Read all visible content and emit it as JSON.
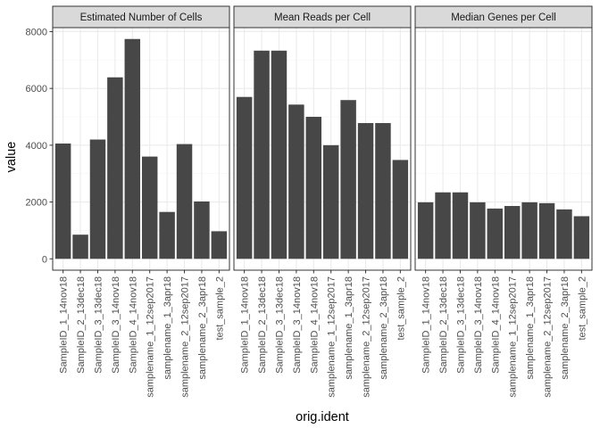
{
  "chart_data": {
    "type": "bar",
    "facets": true,
    "xlabel": "orig.ident",
    "ylabel": "value",
    "ylim": [
      -400,
      8140
    ],
    "yticks": [
      0,
      2000,
      4000,
      6000,
      8000
    ],
    "ytick_labels": [
      "0",
      "2000",
      "4000",
      "6000",
      "8000"
    ],
    "grid": true,
    "categories": [
      "SampleID_1_14nov18",
      "SampleID_2_13dec18",
      "SampleID_3_13dec18",
      "SampleID_3_14nov18",
      "SampleID_4_14nov18",
      "samplename_1_12sep2017",
      "samplename_1_3apr18",
      "samplename_2_12sep2017",
      "samplename_2_3apr18",
      "test_sample_2"
    ],
    "panels": [
      {
        "name": "Estimated Number of Cells",
        "values": [
          4060,
          850,
          4200,
          6390,
          7740,
          3600,
          1650,
          4040,
          2020,
          970
        ]
      },
      {
        "name": "Mean Reads per Cell",
        "values": [
          5700,
          7330,
          7330,
          5430,
          5000,
          4000,
          5590,
          4780,
          4780,
          3480
        ]
      },
      {
        "name": "Median Genes per Cell",
        "values": [
          1990,
          2340,
          2340,
          1990,
          1770,
          1860,
          1990,
          1960,
          1740,
          1500
        ]
      }
    ],
    "colors": {
      "bar": "#474747",
      "strip_fill": "#d9d9d9",
      "strip_border": "#333333",
      "panel_border": "#333333",
      "grid_major": "#ebebeb",
      "grid_minor": "#f5f5f5",
      "tick": "#333333"
    }
  }
}
